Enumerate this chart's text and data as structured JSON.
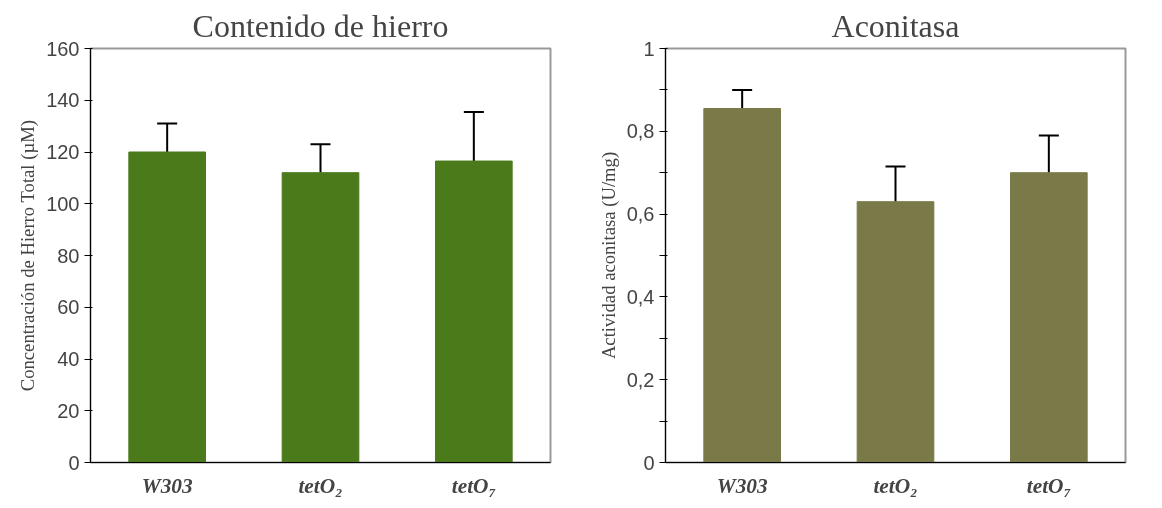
{
  "chart_data": [
    {
      "type": "bar",
      "title": "Contenido de hierro",
      "ylabel": "Concentración de Hierro Total (µM)",
      "categories": [
        "W303",
        "tetO₂",
        "tetO₇"
      ],
      "values": [
        120,
        112,
        116.5
      ],
      "errors": [
        11,
        11,
        19
      ],
      "color": "#4a7a1a",
      "ylim": [
        0,
        160
      ],
      "yticks": [
        0,
        20,
        40,
        60,
        80,
        100,
        120,
        140,
        160
      ],
      "grid": false
    },
    {
      "type": "bar",
      "title": "Aconitasa",
      "ylabel": "Actividad aconitasa (U/mg)",
      "categories": [
        "W303",
        "tetO₂",
        "tetO₇"
      ],
      "values": [
        0.855,
        0.63,
        0.7
      ],
      "errors": [
        0.045,
        0.085,
        0.09
      ],
      "color": "#7a7a48",
      "ylim": [
        0,
        1
      ],
      "yticks": [
        {
          "value": 0,
          "label": "0"
        },
        {
          "value": 0.1,
          "label": null
        },
        {
          "value": 0.2,
          "label": "0,2"
        },
        {
          "value": 0.3,
          "label": null
        },
        {
          "value": 0.4,
          "label": "0,4"
        },
        {
          "value": 0.5,
          "label": null
        },
        {
          "value": 0.6,
          "label": "0,6"
        },
        {
          "value": 0.7,
          "label": null
        },
        {
          "value": 0.8,
          "label": "0,8"
        },
        {
          "value": 0.9,
          "label": null
        },
        {
          "value": 1,
          "label": "1"
        }
      ],
      "grid": false
    }
  ]
}
